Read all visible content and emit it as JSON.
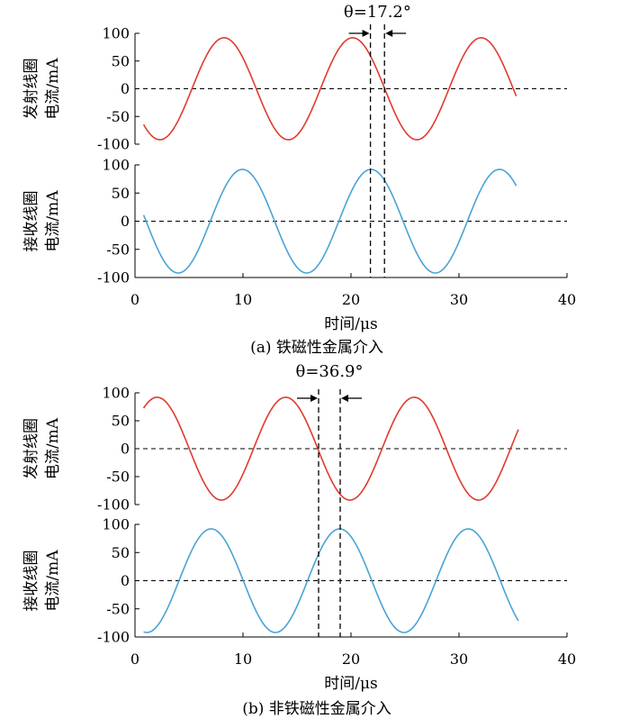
{
  "chart_data": [
    {
      "id": "a",
      "type": "line",
      "caption": "(a) 铁磁性金属介入",
      "xlabel": "时间/μs",
      "xlim": [
        0,
        40
      ],
      "xticks": [
        0,
        10,
        20,
        30,
        40
      ],
      "theta_label": "θ=17.2°",
      "marker_x": [
        21.8,
        23.1
      ],
      "panels": [
        {
          "ylabel_lines": [
            "发射线圈",
            "电流/mA"
          ],
          "ylim": [
            -100,
            100
          ],
          "yticks": [
            100,
            50,
            0,
            -50,
            -100
          ],
          "zero_line": true,
          "series": [
            {
              "color": "#e03a2f",
              "amplitude": 92,
              "period": 11.9,
              "peak_x": 8.25,
              "x_range": [
                0.8,
                35.3
              ]
            }
          ]
        },
        {
          "ylabel_lines": [
            "接收线圈",
            "电流/mA"
          ],
          "ylim": [
            -100,
            100
          ],
          "yticks": [
            100,
            50,
            0,
            -50,
            -100
          ],
          "zero_line": true,
          "series": [
            {
              "color": "#4aa3d6",
              "amplitude": 92,
              "period": 11.9,
              "peak_x": 9.95,
              "x_range": [
                0.8,
                35.3
              ]
            }
          ]
        }
      ]
    },
    {
      "id": "b",
      "type": "line",
      "caption": "(b) 非铁磁性金属介入",
      "xlabel": "时间/μs",
      "xlim": [
        0,
        40
      ],
      "xticks": [
        0,
        10,
        20,
        30,
        40
      ],
      "theta_label": "θ=36.9°",
      "marker_x": [
        17.0,
        19.0
      ],
      "panels": [
        {
          "ylabel_lines": [
            "发射线圈",
            "电流/mA"
          ],
          "ylim": [
            -100,
            100
          ],
          "yticks": [
            100,
            50,
            0,
            -50,
            -100
          ],
          "zero_line": true,
          "series": [
            {
              "color": "#e03a2f",
              "amplitude": 92,
              "period": 11.9,
              "peak_x": 2.05,
              "x_range": [
                0.8,
                35.5
              ]
            }
          ]
        },
        {
          "ylabel_lines": [
            "接收线圈",
            "电流/mA"
          ],
          "ylim": [
            -100,
            100
          ],
          "yticks": [
            100,
            50,
            0,
            -50,
            -100
          ],
          "zero_line": true,
          "series": [
            {
              "color": "#4aa3d6",
              "amplitude": 92,
              "period": 11.9,
              "peak_x": 7.05,
              "x_range": [
                0.8,
                35.5
              ]
            }
          ]
        }
      ]
    }
  ]
}
